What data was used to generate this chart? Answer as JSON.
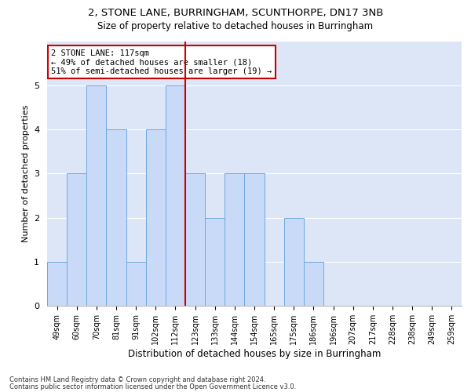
{
  "title1": "2, STONE LANE, BURRINGHAM, SCUNTHORPE, DN17 3NB",
  "title2": "Size of property relative to detached houses in Burringham",
  "xlabel": "Distribution of detached houses by size in Burringham",
  "ylabel": "Number of detached properties",
  "bin_labels": [
    "49sqm",
    "60sqm",
    "70sqm",
    "81sqm",
    "91sqm",
    "102sqm",
    "112sqm",
    "123sqm",
    "133sqm",
    "144sqm",
    "154sqm",
    "165sqm",
    "175sqm",
    "186sqm",
    "196sqm",
    "207sqm",
    "217sqm",
    "228sqm",
    "238sqm",
    "249sqm",
    "259sqm"
  ],
  "bar_values": [
    1,
    3,
    5,
    4,
    1,
    4,
    5,
    3,
    2,
    3,
    3,
    0,
    2,
    1,
    0,
    0,
    0,
    0,
    0,
    0,
    0
  ],
  "bar_color": "#c9daf8",
  "bar_edge_color": "#6fa8dc",
  "ref_bin_index": 6,
  "annotation_line1": "2 STONE LANE: 117sqm",
  "annotation_line2": "← 49% of detached houses are smaller (18)",
  "annotation_line3": "51% of semi-detached houses are larger (19) →",
  "ylim": [
    0,
    6
  ],
  "yticks": [
    0,
    1,
    2,
    3,
    4,
    5,
    6
  ],
  "footnote1": "Contains HM Land Registry data © Crown copyright and database right 2024.",
  "footnote2": "Contains public sector information licensed under the Open Government Licence v3.0.",
  "bg_color": "#ffffff",
  "plot_bg_color": "#dce6f7",
  "grid_color": "#ffffff",
  "annotation_box_edge": "#cc0000",
  "ref_line_color": "#cc0000"
}
